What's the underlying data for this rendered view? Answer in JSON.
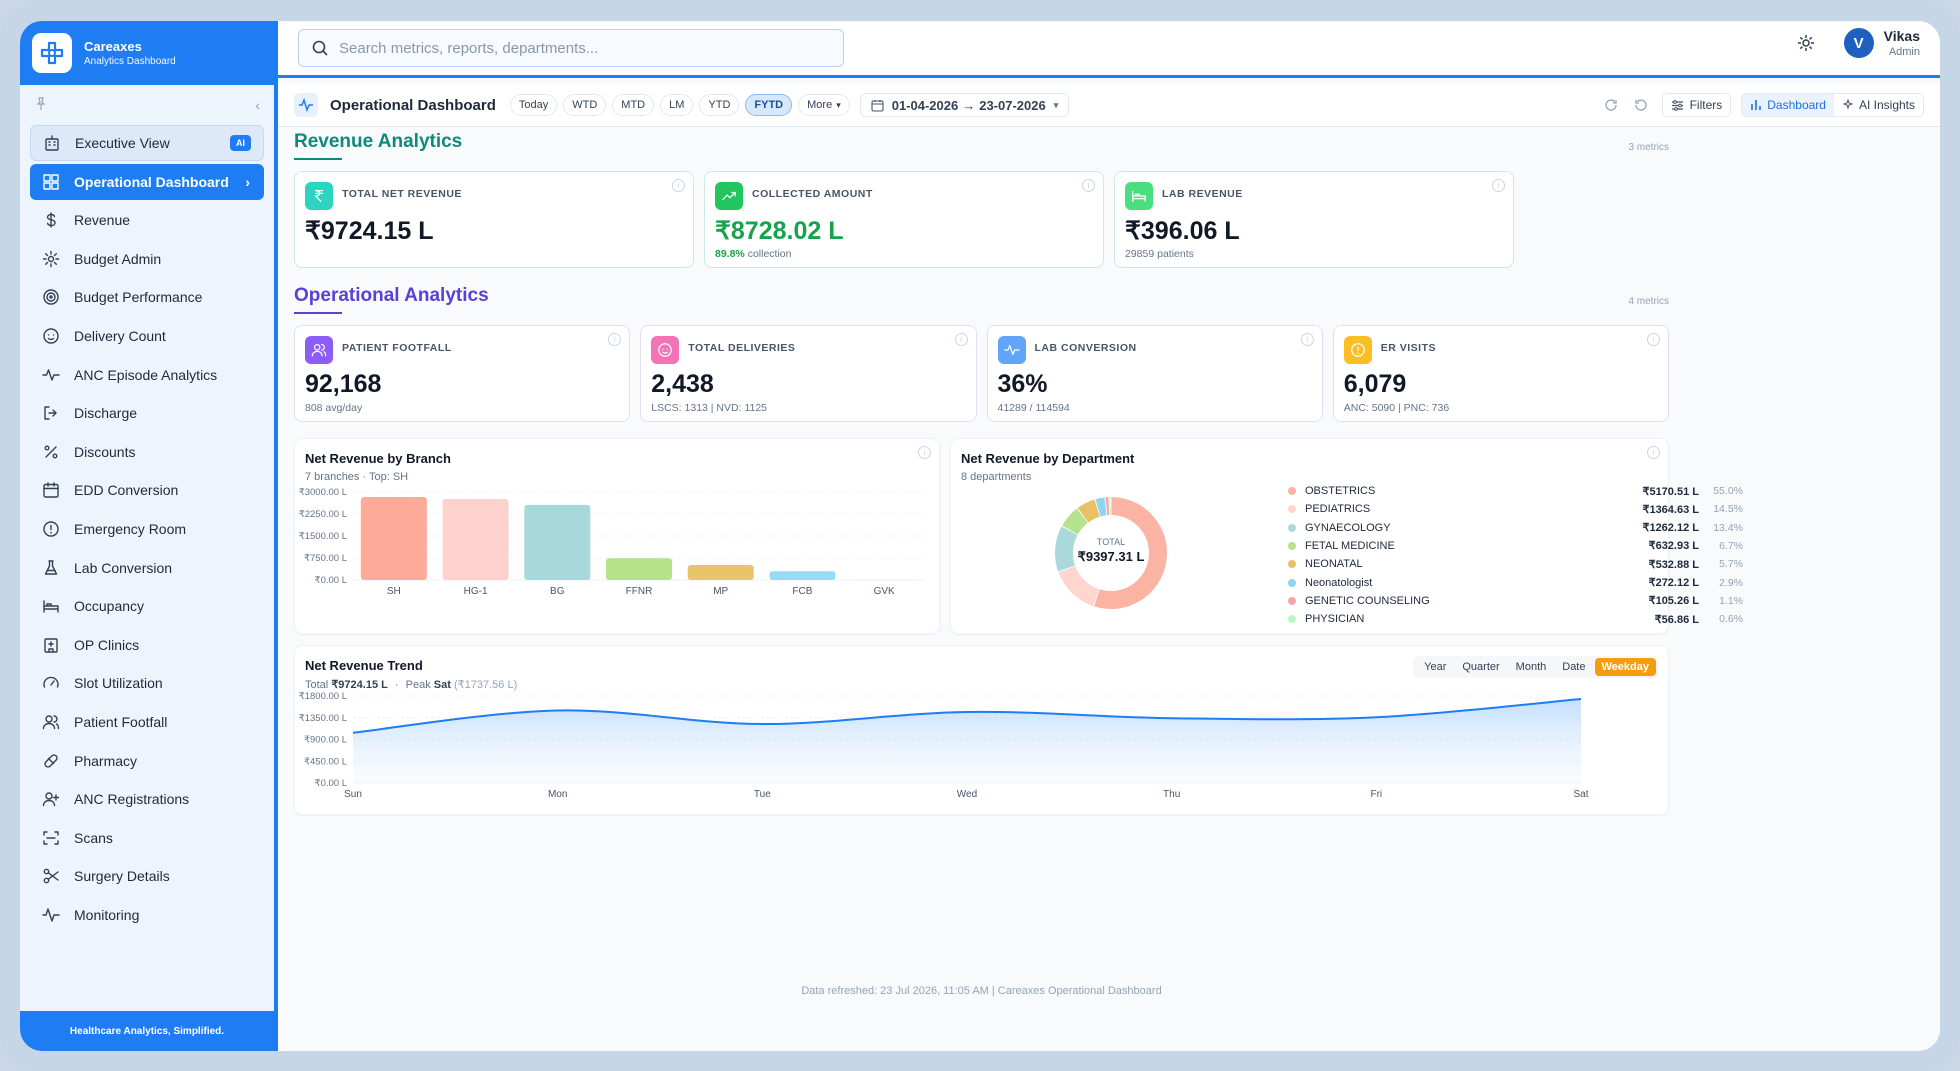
{
  "brand": {
    "name": "Careaxes",
    "subtitle": "Analytics Dashboard",
    "tagline": "Healthcare Analytics, Simplified."
  },
  "sidebar": {
    "items": [
      {
        "label": "Executive View",
        "icon": "building-icon",
        "badge": "AI"
      },
      {
        "label": "Operational Dashboard",
        "icon": "grid-icon",
        "active": true
      },
      {
        "label": "Revenue",
        "icon": "dollar-icon"
      },
      {
        "label": "Budget Admin",
        "icon": "gear-icon"
      },
      {
        "label": "Budget Performance",
        "icon": "target-icon"
      },
      {
        "label": "Delivery Count",
        "icon": "baby-icon"
      },
      {
        "label": "ANC Episode Analytics",
        "icon": "pulse-icon"
      },
      {
        "label": "Discharge",
        "icon": "logout-icon"
      },
      {
        "label": "Discounts",
        "icon": "percent-icon"
      },
      {
        "label": "EDD Conversion",
        "icon": "calendar-icon"
      },
      {
        "label": "Emergency Room",
        "icon": "alert-circle-icon"
      },
      {
        "label": "Lab Conversion",
        "icon": "flask-icon"
      },
      {
        "label": "Occupancy",
        "icon": "bed-icon"
      },
      {
        "label": "OP Clinics",
        "icon": "hospital-icon"
      },
      {
        "label": "Slot Utilization",
        "icon": "gauge-icon"
      },
      {
        "label": "Patient Footfall",
        "icon": "users-icon"
      },
      {
        "label": "Pharmacy",
        "icon": "pill-icon"
      },
      {
        "label": "ANC Registrations",
        "icon": "user-plus-icon"
      },
      {
        "label": "Scans",
        "icon": "scan-icon"
      },
      {
        "label": "Surgery Details",
        "icon": "scissors-icon"
      },
      {
        "label": "Monitoring",
        "icon": "activity-icon"
      }
    ]
  },
  "search": {
    "placeholder": "Search metrics, reports, departments..."
  },
  "user": {
    "initial": "V",
    "name": "Vikas",
    "role": "Admin"
  },
  "toolbar": {
    "title": "Operational Dashboard",
    "periods": [
      "Today",
      "WTD",
      "MTD",
      "LM",
      "YTD",
      "FYTD"
    ],
    "selected_period": "FYTD",
    "more_label": "More",
    "date_from": "01-04-2026",
    "date_to": "23-07-2026",
    "filters_label": "Filters",
    "dashboard_label": "Dashboard",
    "ai_insights_label": "AI Insights"
  },
  "revenue_section": {
    "title": "Revenue Analytics",
    "count": "3 metrics",
    "cards": [
      {
        "label": "TOTAL NET REVENUE",
        "value": "₹9724.15 L",
        "sub": "",
        "icon": "rupee-icon",
        "color": "#2dd4bf"
      },
      {
        "label": "COLLECTED AMOUNT",
        "value": "₹8728.02 L",
        "sub_strong": "89.8%",
        "sub": "collection",
        "icon": "trend-up-icon",
        "color": "#22c55e"
      },
      {
        "label": "LAB REVENUE",
        "value": "₹396.06 L",
        "sub": "29859 patients",
        "icon": "bed-icon",
        "color": "#4ade80"
      }
    ]
  },
  "operational_section": {
    "title": "Operational Analytics",
    "count": "4 metrics",
    "cards": [
      {
        "label": "PATIENT FOOTFALL",
        "value": "92,168",
        "sub": "808 avg/day",
        "icon": "users-icon",
        "color": "#8b5cf6"
      },
      {
        "label": "TOTAL DELIVERIES",
        "value": "2,438",
        "sub": "LSCS: 1313 | NVD: 1125",
        "icon": "baby-icon",
        "color": "#f472b6"
      },
      {
        "label": "LAB CONVERSION",
        "value": "36%",
        "sub": "41289 / 114594",
        "icon": "pulse-icon",
        "color": "#60a5fa"
      },
      {
        "label": "ER VISITS",
        "value": "6,079",
        "sub": "ANC: 5090 | PNC: 736",
        "icon": "alert-circle-icon",
        "color": "#fbbf24"
      }
    ]
  },
  "branch_chart": {
    "title": "Net Revenue by Branch",
    "subtitle": "7 branches · Top: SH",
    "y_ticks": [
      "₹0.00 L",
      "₹750.00 L",
      "₹1500.00 L",
      "₹2250.00 L",
      "₹3000.00 L"
    ]
  },
  "department_chart": {
    "title": "Net Revenue by Department",
    "subtitle": "8 departments",
    "total_label": "TOTAL",
    "total_value": "₹9397.31 L"
  },
  "trend_chart": {
    "title": "Net Revenue Trend",
    "total_prefix": "Total",
    "total_value": "₹9724.15 L",
    "peak_prefix": "Peak",
    "peak_day": "Sat",
    "peak_value": "(₹1737.56 L)",
    "granularity": [
      "Year",
      "Quarter",
      "Month",
      "Date",
      "Weekday"
    ],
    "selected": "Weekday",
    "y_ticks": [
      "₹0.00 L",
      "₹450.00 L",
      "₹900.00 L",
      "₹1350.00 L",
      "₹1800.00 L"
    ]
  },
  "footer": {
    "note": "Data refreshed: 23 Jul 2026, 11:05 AM | Careaxes Operational Dashboard"
  },
  "chart_data": [
    {
      "type": "bar",
      "title": "Net Revenue by Branch",
      "categories": [
        "SH",
        "HG-1",
        "BG",
        "FFNR",
        "MP",
        "FCB",
        "GVK"
      ],
      "values": [
        2830,
        2760,
        2560,
        740,
        510,
        300,
        10
      ],
      "colors": [
        "#fdaa99",
        "#fdd2cc",
        "#a7d9dc",
        "#b6e38a",
        "#e8c46a",
        "#93dcf3",
        "#e9d5ff"
      ],
      "ylim": [
        0,
        3000
      ]
    },
    {
      "type": "pie",
      "title": "Net Revenue by Department",
      "labels": [
        "OBSTETRICS",
        "PEDIATRICS",
        "GYNAECOLOGY",
        "FETAL MEDICINE",
        "NEONATAL",
        "Neonatologist",
        "GENETIC COUNSELING",
        "PHYSICIAN"
      ],
      "value_labels": [
        "₹5170.51 L",
        "₹1364.63 L",
        "₹1262.12 L",
        "₹632.93 L",
        "₹532.88 L",
        "₹272.12 L",
        "₹105.26 L",
        "₹56.86 L"
      ],
      "percent_labels": [
        "55.0%",
        "14.5%",
        "13.4%",
        "6.7%",
        "5.7%",
        "2.9%",
        "1.1%",
        "0.6%"
      ],
      "values": [
        5170.51,
        1364.63,
        1262.12,
        632.93,
        532.88,
        272.12,
        105.26,
        56.86
      ],
      "colors": [
        "#fbb3a4",
        "#fdd6cf",
        "#a9d9dc",
        "#b7e28d",
        "#e8c164",
        "#8fd5ee",
        "#fca5a5",
        "#bbf7c4"
      ]
    },
    {
      "type": "area",
      "title": "Net Revenue Trend",
      "categories": [
        "Sun",
        "Mon",
        "Tue",
        "Wed",
        "Thu",
        "Fri",
        "Sat"
      ],
      "values": [
        1040,
        1500,
        1220,
        1470,
        1340,
        1360,
        1737.56
      ],
      "ylim": [
        0,
        1800
      ]
    }
  ]
}
